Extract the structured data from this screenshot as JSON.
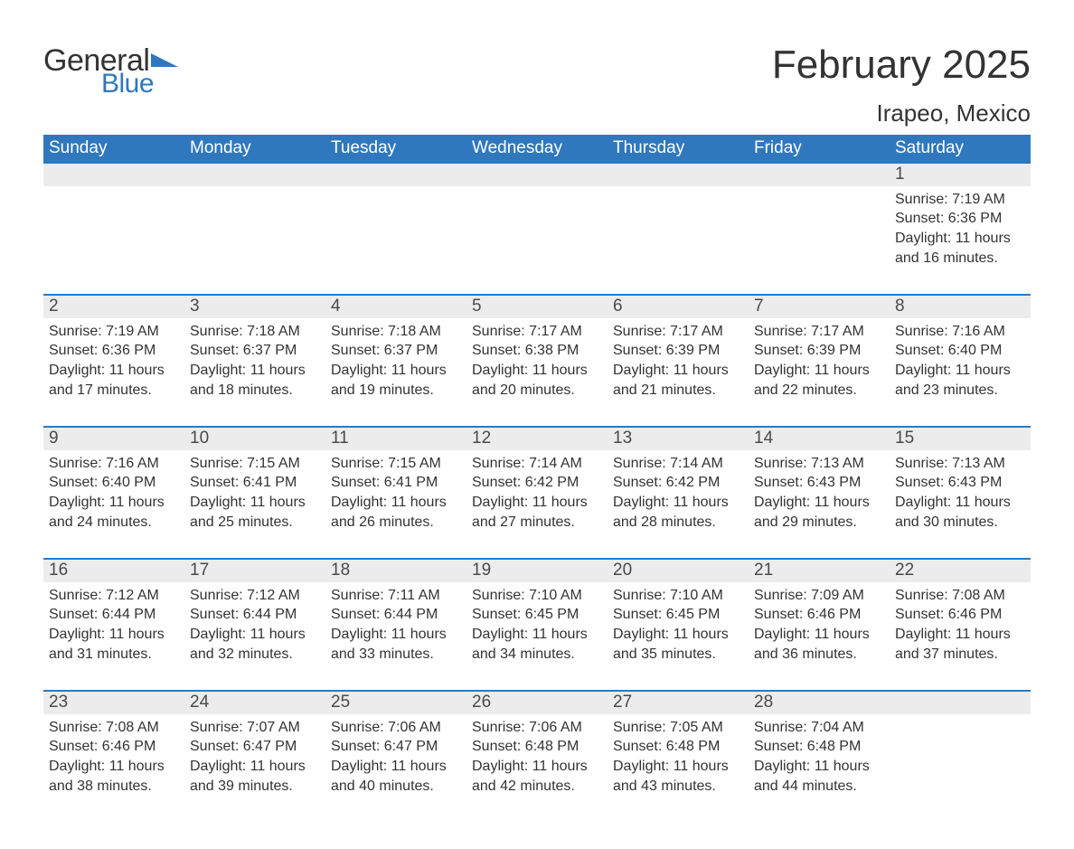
{
  "brand": {
    "word1": "General",
    "word2": "Blue",
    "word1_color": "#333333",
    "word2_color": "#2f78bd",
    "shape_color": "#2f78bd"
  },
  "title": "February 2025",
  "location": "Irapeo, Mexico",
  "layout": {
    "type": "calendar",
    "columns": 7,
    "weeks": 5,
    "first_day_column_index": 6,
    "day_count": 28,
    "background_color": "#ffffff",
    "header_bg": "#2f78bd",
    "header_text_color": "#ffffff",
    "daynum_bg": "#ececec",
    "daynum_color": "#4a4a4a",
    "body_text_color": "#333333",
    "separator_color": "#2f78bd",
    "title_fontsize": 44,
    "location_fontsize": 26,
    "header_fontsize": 19,
    "daynum_fontsize": 19,
    "body_fontsize": 16
  },
  "weekdays": [
    "Sunday",
    "Monday",
    "Tuesday",
    "Wednesday",
    "Thursday",
    "Friday",
    "Saturday"
  ],
  "days": [
    {
      "n": "1",
      "sunrise": "Sunrise: 7:19 AM",
      "sunset": "Sunset: 6:36 PM",
      "daylight": "Daylight: 11 hours and 16 minutes."
    },
    {
      "n": "2",
      "sunrise": "Sunrise: 7:19 AM",
      "sunset": "Sunset: 6:36 PM",
      "daylight": "Daylight: 11 hours and 17 minutes."
    },
    {
      "n": "3",
      "sunrise": "Sunrise: 7:18 AM",
      "sunset": "Sunset: 6:37 PM",
      "daylight": "Daylight: 11 hours and 18 minutes."
    },
    {
      "n": "4",
      "sunrise": "Sunrise: 7:18 AM",
      "sunset": "Sunset: 6:37 PM",
      "daylight": "Daylight: 11 hours and 19 minutes."
    },
    {
      "n": "5",
      "sunrise": "Sunrise: 7:17 AM",
      "sunset": "Sunset: 6:38 PM",
      "daylight": "Daylight: 11 hours and 20 minutes."
    },
    {
      "n": "6",
      "sunrise": "Sunrise: 7:17 AM",
      "sunset": "Sunset: 6:39 PM",
      "daylight": "Daylight: 11 hours and 21 minutes."
    },
    {
      "n": "7",
      "sunrise": "Sunrise: 7:17 AM",
      "sunset": "Sunset: 6:39 PM",
      "daylight": "Daylight: 11 hours and 22 minutes."
    },
    {
      "n": "8",
      "sunrise": "Sunrise: 7:16 AM",
      "sunset": "Sunset: 6:40 PM",
      "daylight": "Daylight: 11 hours and 23 minutes."
    },
    {
      "n": "9",
      "sunrise": "Sunrise: 7:16 AM",
      "sunset": "Sunset: 6:40 PM",
      "daylight": "Daylight: 11 hours and 24 minutes."
    },
    {
      "n": "10",
      "sunrise": "Sunrise: 7:15 AM",
      "sunset": "Sunset: 6:41 PM",
      "daylight": "Daylight: 11 hours and 25 minutes."
    },
    {
      "n": "11",
      "sunrise": "Sunrise: 7:15 AM",
      "sunset": "Sunset: 6:41 PM",
      "daylight": "Daylight: 11 hours and 26 minutes."
    },
    {
      "n": "12",
      "sunrise": "Sunrise: 7:14 AM",
      "sunset": "Sunset: 6:42 PM",
      "daylight": "Daylight: 11 hours and 27 minutes."
    },
    {
      "n": "13",
      "sunrise": "Sunrise: 7:14 AM",
      "sunset": "Sunset: 6:42 PM",
      "daylight": "Daylight: 11 hours and 28 minutes."
    },
    {
      "n": "14",
      "sunrise": "Sunrise: 7:13 AM",
      "sunset": "Sunset: 6:43 PM",
      "daylight": "Daylight: 11 hours and 29 minutes."
    },
    {
      "n": "15",
      "sunrise": "Sunrise: 7:13 AM",
      "sunset": "Sunset: 6:43 PM",
      "daylight": "Daylight: 11 hours and 30 minutes."
    },
    {
      "n": "16",
      "sunrise": "Sunrise: 7:12 AM",
      "sunset": "Sunset: 6:44 PM",
      "daylight": "Daylight: 11 hours and 31 minutes."
    },
    {
      "n": "17",
      "sunrise": "Sunrise: 7:12 AM",
      "sunset": "Sunset: 6:44 PM",
      "daylight": "Daylight: 11 hours and 32 minutes."
    },
    {
      "n": "18",
      "sunrise": "Sunrise: 7:11 AM",
      "sunset": "Sunset: 6:44 PM",
      "daylight": "Daylight: 11 hours and 33 minutes."
    },
    {
      "n": "19",
      "sunrise": "Sunrise: 7:10 AM",
      "sunset": "Sunset: 6:45 PM",
      "daylight": "Daylight: 11 hours and 34 minutes."
    },
    {
      "n": "20",
      "sunrise": "Sunrise: 7:10 AM",
      "sunset": "Sunset: 6:45 PM",
      "daylight": "Daylight: 11 hours and 35 minutes."
    },
    {
      "n": "21",
      "sunrise": "Sunrise: 7:09 AM",
      "sunset": "Sunset: 6:46 PM",
      "daylight": "Daylight: 11 hours and 36 minutes."
    },
    {
      "n": "22",
      "sunrise": "Sunrise: 7:08 AM",
      "sunset": "Sunset: 6:46 PM",
      "daylight": "Daylight: 11 hours and 37 minutes."
    },
    {
      "n": "23",
      "sunrise": "Sunrise: 7:08 AM",
      "sunset": "Sunset: 6:46 PM",
      "daylight": "Daylight: 11 hours and 38 minutes."
    },
    {
      "n": "24",
      "sunrise": "Sunrise: 7:07 AM",
      "sunset": "Sunset: 6:47 PM",
      "daylight": "Daylight: 11 hours and 39 minutes."
    },
    {
      "n": "25",
      "sunrise": "Sunrise: 7:06 AM",
      "sunset": "Sunset: 6:47 PM",
      "daylight": "Daylight: 11 hours and 40 minutes."
    },
    {
      "n": "26",
      "sunrise": "Sunrise: 7:06 AM",
      "sunset": "Sunset: 6:48 PM",
      "daylight": "Daylight: 11 hours and 42 minutes."
    },
    {
      "n": "27",
      "sunrise": "Sunrise: 7:05 AM",
      "sunset": "Sunset: 6:48 PM",
      "daylight": "Daylight: 11 hours and 43 minutes."
    },
    {
      "n": "28",
      "sunrise": "Sunrise: 7:04 AM",
      "sunset": "Sunset: 6:48 PM",
      "daylight": "Daylight: 11 hours and 44 minutes."
    }
  ]
}
